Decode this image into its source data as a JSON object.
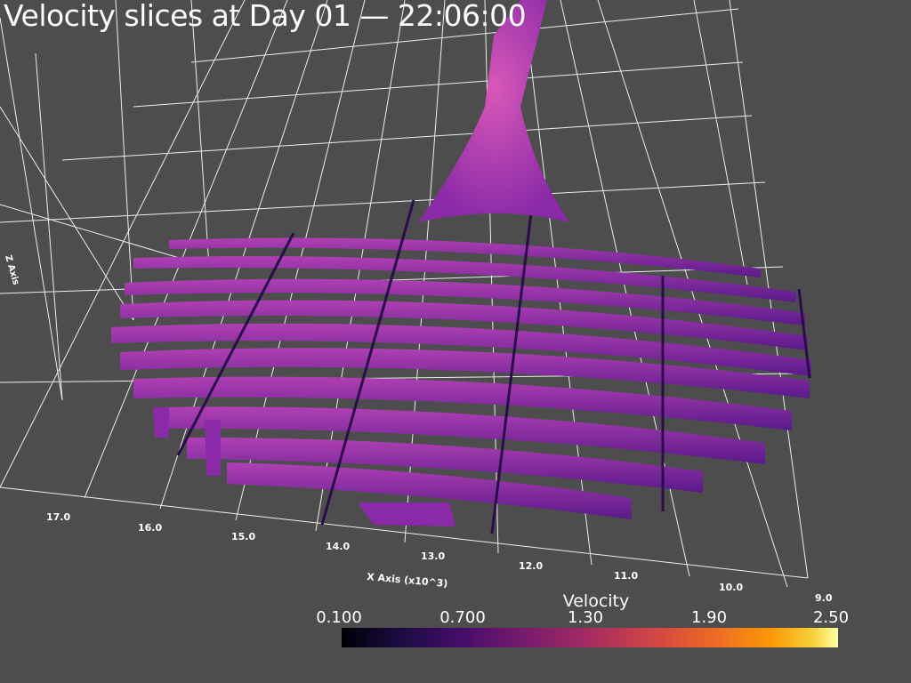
{
  "title": "Velocity slices at Day 01 — 22:06:00",
  "chart_data": {
    "type": "3d-surface-slices",
    "title": "Velocity slices at Day 01 — 22:06:00",
    "xlabel": "X Axis (x10^3)",
    "zlabel": "Z Axis",
    "x_ticks": [
      "17.0",
      "16.0",
      "15.0",
      "14.0",
      "13.0",
      "12.0",
      "11.0",
      "10.0",
      "9.0"
    ],
    "scalar": "Velocity",
    "colorbar": {
      "title": "Velocity",
      "ticks": [
        "0.100",
        "0.700",
        "1.30",
        "1.90",
        "2.50"
      ],
      "range": [
        0.1,
        2.5
      ],
      "colormap": "inferno"
    },
    "grid": true
  },
  "colors": {
    "background": "#4d4d4d",
    "grid": "#ffffff",
    "slice_dark": "#5a1a8a",
    "slice_mid": "#8a2aa8",
    "slice_light": "#b040b4",
    "peak": "#d858b8"
  }
}
